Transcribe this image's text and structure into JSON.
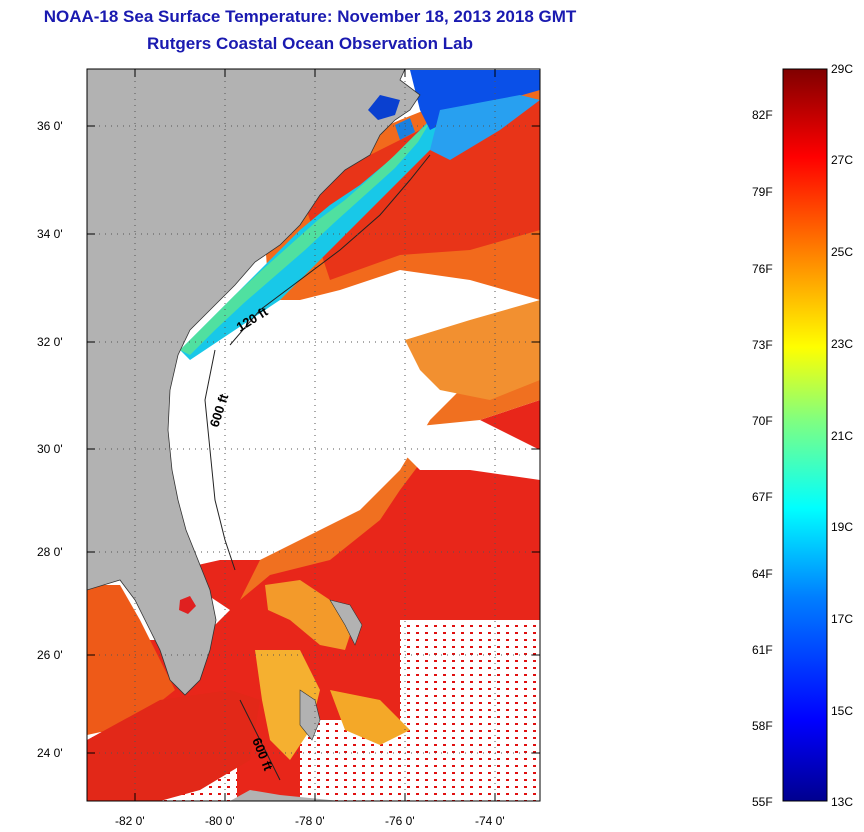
{
  "title": "NOAA-18 Sea Surface Temperature:  November 18, 2013 2018 GMT",
  "subtitle": "Rutgers Coastal Ocean Observation Lab",
  "lat_ticks": [
    "36 0'",
    "34 0'",
    "32 0'",
    "30 0'",
    "28 0'",
    "26 0'",
    "24 0'"
  ],
  "lon_ticks": [
    "-82 0'",
    "-80 0'",
    "-78 0'",
    "-76 0'",
    "-74 0'"
  ],
  "contours": [
    "120 ft",
    "600 ft",
    "600 ft"
  ],
  "colorbar": {
    "fahrenheit": [
      "82F",
      "79F",
      "76F",
      "73F",
      "70F",
      "67F",
      "64F",
      "61F",
      "58F",
      "55F"
    ],
    "celsius": [
      "29C",
      "27C",
      "25C",
      "23C",
      "21C",
      "19C",
      "17C",
      "15C",
      "13C"
    ]
  },
  "colors": {
    "title": "#1a1ab0",
    "land": "#b2b2b2",
    "cloud": "#ffffff"
  }
}
